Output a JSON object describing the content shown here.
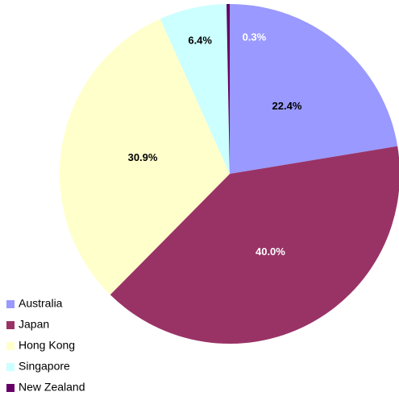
{
  "chart_data": {
    "type": "pie",
    "categories": [
      "Australia",
      "Japan",
      "Hong Kong",
      "Singapore",
      "New Zealand"
    ],
    "values": [
      22.4,
      40.0,
      30.9,
      6.4,
      0.3
    ],
    "value_labels": [
      "22.4%",
      "40.0%",
      "30.9%",
      "6.4%",
      "0.3%"
    ],
    "colors": [
      "#9999ff",
      "#993366",
      "#ffffcc",
      "#ccffff",
      "#660066"
    ],
    "legend": "bottom-left"
  }
}
